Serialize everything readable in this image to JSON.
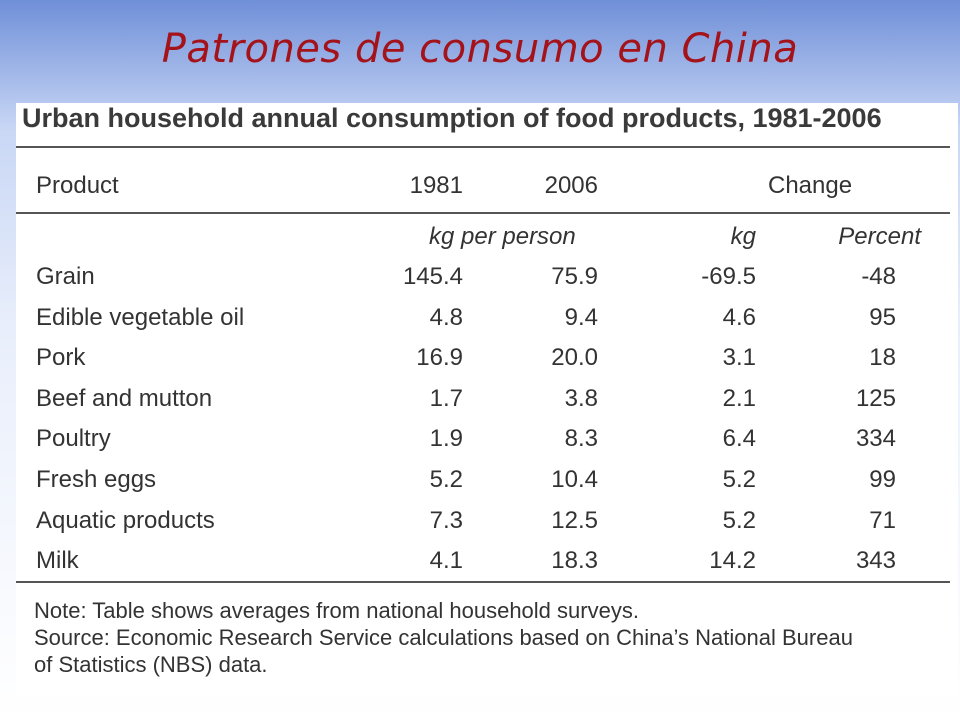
{
  "slide": {
    "title": "Patrones de consumo en China"
  },
  "table": {
    "title": "Urban household annual consumption of food products, 1981-2006",
    "headers": {
      "product": "Product",
      "y1981": "1981",
      "y2006": "2006",
      "change": "Change"
    },
    "subheaders": {
      "kg_per_person": "kg per person",
      "kg": "kg",
      "percent": "Percent"
    },
    "rows": [
      {
        "product": "Grain",
        "y1981": "145.4",
        "y2006": "75.9",
        "kg": "-69.5",
        "percent": "-48"
      },
      {
        "product": "Edible vegetable oil",
        "y1981": "4.8",
        "y2006": "9.4",
        "kg": "4.6",
        "percent": "95"
      },
      {
        "product": "Pork",
        "y1981": "16.9",
        "y2006": "20.0",
        "kg": "3.1",
        "percent": "18"
      },
      {
        "product": "Beef and mutton",
        "y1981": "1.7",
        "y2006": "3.8",
        "kg": "2.1",
        "percent": "125"
      },
      {
        "product": "Poultry",
        "y1981": "1.9",
        "y2006": "8.3",
        "kg": "6.4",
        "percent": "334"
      },
      {
        "product": "Fresh eggs",
        "y1981": "5.2",
        "y2006": "10.4",
        "kg": "5.2",
        "percent": "99"
      },
      {
        "product": "Aquatic products",
        "y1981": "7.3",
        "y2006": "12.5",
        "kg": "5.2",
        "percent": "71"
      },
      {
        "product": "Milk",
        "y1981": "4.1",
        "y2006": "18.3",
        "kg": "14.2",
        "percent": "343"
      }
    ],
    "notes": [
      "Note: Table shows averages from national household surveys.",
      "Source: Economic Research Service calculations based on China’s National Bureau",
      "of Statistics (NBS) data."
    ]
  }
}
